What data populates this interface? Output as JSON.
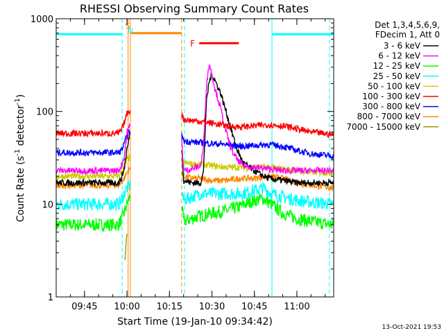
{
  "chart_data": {
    "type": "line",
    "title": "RHESSI Observing Summary Count Rates",
    "xlabel": "Start Time (19-Jan-10 09:34:42)",
    "ylabel_parts": [
      "Count Rate (s",
      "-1",
      " detector",
      "-1",
      ")"
    ],
    "yscale": "log",
    "ylim": [
      1,
      1000
    ],
    "xlim_minutes": [
      35,
      133
    ],
    "x_ticks": [
      {
        "label": "09:45",
        "t": 45
      },
      {
        "label": "10:00",
        "t": 60
      },
      {
        "label": "10:15",
        "t": 75
      },
      {
        "label": "10:30",
        "t": 90
      },
      {
        "label": "10:45",
        "t": 105
      },
      {
        "label": "11:00",
        "t": 120
      }
    ],
    "y_ticks": [
      {
        "label": "1",
        "v": 1
      },
      {
        "label": "10",
        "v": 10
      },
      {
        "label": "100",
        "v": 100
      },
      {
        "label": "1000",
        "v": 1000
      }
    ],
    "legend_header": [
      "Det 1,3,4,5,6,9,",
      "FDecim 1, Att 0"
    ],
    "legend_position": "right",
    "series": [
      {
        "name": "3 - 6 keV",
        "color": "#000000",
        "points": [
          [
            35,
            17
          ],
          [
            57,
            17
          ],
          [
            58,
            19
          ],
          [
            59,
            24
          ],
          [
            59.6,
            32
          ],
          [
            60,
            40
          ],
          [
            60.3,
            42
          ],
          [
            61,
            60
          ],
          [
            79,
            60
          ],
          [
            80,
            18
          ],
          [
            83,
            17
          ],
          [
            86,
            17
          ],
          [
            87,
            22
          ],
          [
            88,
            120
          ],
          [
            89,
            210
          ],
          [
            90,
            250
          ],
          [
            91,
            220
          ],
          [
            93,
            160
          ],
          [
            95,
            100
          ],
          [
            97,
            60
          ],
          [
            99,
            38
          ],
          [
            101,
            28
          ],
          [
            104,
            24
          ],
          [
            107,
            21
          ],
          [
            110,
            19
          ],
          [
            115,
            18
          ],
          [
            120,
            17
          ],
          [
            133,
            17
          ]
        ]
      },
      {
        "name": "6 - 12 keV",
        "color": "#ff00ff",
        "points": [
          [
            35,
            23
          ],
          [
            57,
            23
          ],
          [
            58,
            26
          ],
          [
            59,
            32
          ],
          [
            59.6,
            45
          ],
          [
            60,
            60
          ],
          [
            60.3,
            62
          ],
          [
            61,
            70
          ],
          [
            79,
            70
          ],
          [
            80,
            23
          ],
          [
            83,
            24
          ],
          [
            86,
            26
          ],
          [
            87,
            40
          ],
          [
            88,
            180
          ],
          [
            89,
            330
          ],
          [
            90,
            250
          ],
          [
            91,
            180
          ],
          [
            93,
            110
          ],
          [
            95,
            60
          ],
          [
            97,
            38
          ],
          [
            99,
            30
          ],
          [
            101,
            26
          ],
          [
            105,
            25
          ],
          [
            110,
            24
          ],
          [
            115,
            23
          ],
          [
            120,
            23
          ],
          [
            133,
            23
          ]
        ]
      },
      {
        "name": "12 - 25 keV",
        "color": "#00ff00",
        "points": [
          [
            35,
            6
          ],
          [
            57,
            6
          ],
          [
            58,
            6.8
          ],
          [
            59,
            8
          ],
          [
            60,
            10
          ],
          [
            61,
            12
          ],
          [
            79,
            12
          ],
          [
            80,
            6.5
          ],
          [
            83,
            7
          ],
          [
            86,
            7.5
          ],
          [
            90,
            8
          ],
          [
            95,
            8.5
          ],
          [
            100,
            9.5
          ],
          [
            105,
            11
          ],
          [
            108,
            11.5
          ],
          [
            111,
            10
          ],
          [
            115,
            8
          ],
          [
            120,
            7
          ],
          [
            125,
            6.5
          ],
          [
            133,
            6
          ]
        ]
      },
      {
        "name": "25 - 50 keV",
        "color": "#00ffff",
        "points": [
          [
            35,
            10
          ],
          [
            57,
            10
          ],
          [
            58,
            11
          ],
          [
            59,
            13
          ],
          [
            60,
            15
          ],
          [
            61,
            16
          ],
          [
            79,
            16
          ],
          [
            80,
            11
          ],
          [
            83,
            12
          ],
          [
            86,
            13
          ],
          [
            90,
            13
          ],
          [
            95,
            13
          ],
          [
            100,
            13
          ],
          [
            105,
            14
          ],
          [
            108,
            15
          ],
          [
            111,
            13
          ],
          [
            115,
            12
          ],
          [
            120,
            11
          ],
          [
            125,
            10.5
          ],
          [
            133,
            10
          ]
        ]
      },
      {
        "name": "50 - 100 keV",
        "color": "#cccc00",
        "points": [
          [
            35,
            20
          ],
          [
            57,
            20
          ],
          [
            58,
            22
          ],
          [
            59,
            26
          ],
          [
            60,
            30
          ],
          [
            61,
            32
          ],
          [
            79,
            32
          ],
          [
            80,
            28
          ],
          [
            83,
            27
          ],
          [
            86,
            27
          ],
          [
            90,
            26
          ],
          [
            95,
            25
          ],
          [
            100,
            25
          ],
          [
            105,
            25
          ],
          [
            110,
            25
          ],
          [
            115,
            24
          ],
          [
            120,
            23
          ],
          [
            125,
            22
          ],
          [
            133,
            22
          ]
        ]
      },
      {
        "name": "100 - 300 keV",
        "color": "#ff0000",
        "points": [
          [
            35,
            58
          ],
          [
            57,
            58
          ],
          [
            58,
            62
          ],
          [
            59,
            75
          ],
          [
            60,
            95
          ],
          [
            60.3,
            100
          ],
          [
            61,
            100
          ],
          [
            79,
            100
          ],
          [
            80,
            82
          ],
          [
            83,
            80
          ],
          [
            86,
            78
          ],
          [
            90,
            75
          ],
          [
            95,
            70
          ],
          [
            100,
            68
          ],
          [
            105,
            70
          ],
          [
            110,
            72
          ],
          [
            115,
            70
          ],
          [
            120,
            65
          ],
          [
            125,
            60
          ],
          [
            133,
            56
          ]
        ]
      },
      {
        "name": "300 - 800 keV",
        "color": "#0000ff",
        "points": [
          [
            35,
            36
          ],
          [
            57,
            36
          ],
          [
            58,
            38
          ],
          [
            59,
            44
          ],
          [
            60,
            55
          ],
          [
            61,
            60
          ],
          [
            79,
            60
          ],
          [
            80,
            48
          ],
          [
            83,
            47
          ],
          [
            86,
            46
          ],
          [
            90,
            45
          ],
          [
            95,
            44
          ],
          [
            100,
            42
          ],
          [
            105,
            43
          ],
          [
            110,
            44
          ],
          [
            115,
            42
          ],
          [
            120,
            38
          ],
          [
            125,
            35
          ],
          [
            133,
            33
          ]
        ]
      },
      {
        "name": "800 - 7000 keV",
        "color": "#ff8800",
        "points": [
          [
            35,
            16
          ],
          [
            57,
            16
          ],
          [
            58,
            17
          ],
          [
            59,
            19
          ],
          [
            60,
            22
          ],
          [
            61,
            24
          ],
          [
            79,
            24
          ],
          [
            80,
            20
          ],
          [
            83,
            19
          ],
          [
            86,
            19
          ],
          [
            90,
            18
          ],
          [
            95,
            18
          ],
          [
            100,
            19
          ],
          [
            105,
            19
          ],
          [
            110,
            20
          ],
          [
            115,
            19
          ],
          [
            120,
            17
          ],
          [
            125,
            16
          ],
          [
            133,
            15
          ]
        ]
      },
      {
        "name": "7000 - 15000 keV",
        "color": "#999900",
        "points": [
          [
            59.3,
            2.5
          ],
          [
            59.6,
            3.5
          ],
          [
            59.8,
            4.2
          ],
          [
            60,
            4.8
          ]
        ]
      }
    ],
    "state_bars": [
      {
        "name": "attenuator-state",
        "label": "",
        "color": "#ff8800",
        "t0": 61.3,
        "t1": 79.3,
        "v": 700
      },
      {
        "name": "flare-flag",
        "label": "F",
        "color": "#ff0000",
        "t0": 85.5,
        "t1": 99.5,
        "v": 545
      }
    ],
    "marker_letters": [
      {
        "label": "S",
        "color": "#ff8800",
        "t": 60.4,
        "v": 860
      },
      {
        "label": "N",
        "color": "#00ffff",
        "t": 61.2,
        "v": 760
      }
    ],
    "night_intervals": [
      {
        "t0": 35,
        "t1": 58.3,
        "v": 680
      },
      {
        "t0": 111.2,
        "t1": 133,
        "v": 680
      }
    ],
    "vertical_lines": [
      {
        "t": 58.3,
        "color": "#00ffff",
        "style": "dash"
      },
      {
        "t": 60.4,
        "color": "#ff8800",
        "style": "solid"
      },
      {
        "t": 61.2,
        "color": "#ff8800",
        "style": "solid"
      },
      {
        "t": 79.3,
        "color": "#ff8800",
        "style": "dash"
      },
      {
        "t": 80.3,
        "color": "#00ffff",
        "style": "dash"
      },
      {
        "t": 111.2,
        "color": "#00ffff",
        "style": "solid"
      },
      {
        "t": 131.5,
        "color": "#00ffff",
        "style": "dash"
      }
    ],
    "gaps": [
      [
        61.2,
        79.3
      ]
    ]
  },
  "footer": {
    "timestamp": "13-Oct-2021 19:53"
  }
}
